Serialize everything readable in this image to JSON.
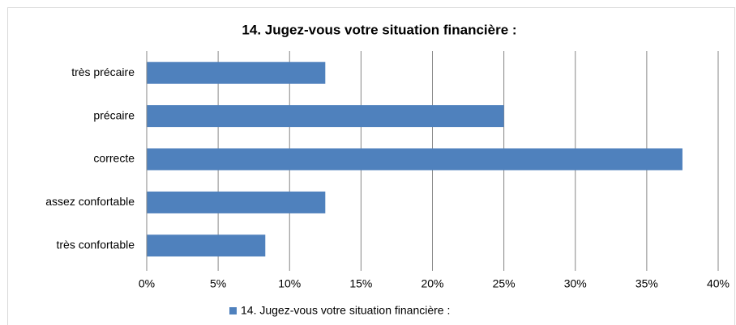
{
  "chart_data": {
    "type": "hbar",
    "title": "14. Jugez-vous votre situation financière :",
    "categories": [
      "très précaire",
      "précaire",
      "correcte",
      "assez confortable",
      "très confortable"
    ],
    "series": [
      {
        "name": "14. Jugez-vous votre situation financière :",
        "color": "#4f81bd",
        "values": [
          12.5,
          25,
          37.5,
          12.5,
          8.3
        ]
      }
    ],
    "xlim": [
      0,
      40
    ],
    "xticks": [
      {
        "value": 0,
        "label": "0%"
      },
      {
        "value": 5,
        "label": "5%"
      },
      {
        "value": 10,
        "label": "10%"
      },
      {
        "value": 15,
        "label": "15%"
      },
      {
        "value": 20,
        "label": "20%"
      },
      {
        "value": 25,
        "label": "25%"
      },
      {
        "value": 30,
        "label": "30%"
      },
      {
        "value": 35,
        "label": "35%"
      },
      {
        "value": 40,
        "label": "40%"
      }
    ],
    "grid": true,
    "legend": "bottom"
  }
}
